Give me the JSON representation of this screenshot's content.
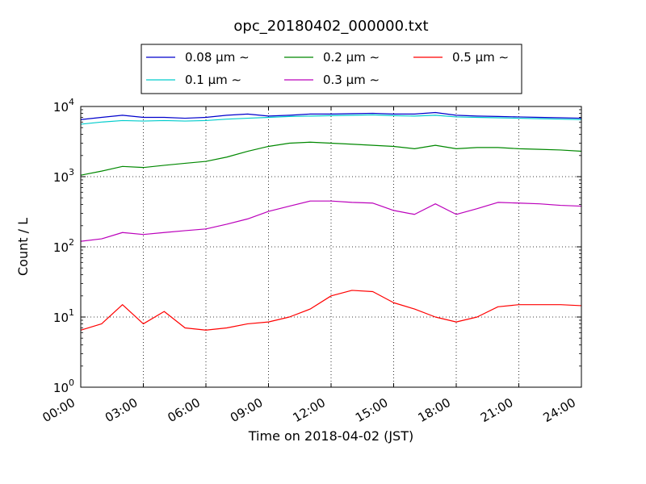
{
  "chart_data": {
    "type": "line",
    "title": "opc_20180402_000000.txt",
    "xlabel": "Time on 2018-04-02 (JST)",
    "ylabel": "Count / L",
    "x_ticks": [
      "00:00",
      "03:00",
      "06:00",
      "09:00",
      "12:00",
      "15:00",
      "18:00",
      "21:00",
      "24:00"
    ],
    "y_scale": "log",
    "ylim": [
      1,
      10000
    ],
    "y_ticks": [
      {
        "base": "10",
        "exp": "0"
      },
      {
        "base": "10",
        "exp": "1"
      },
      {
        "base": "10",
        "exp": "2"
      },
      {
        "base": "10",
        "exp": "3"
      },
      {
        "base": "10",
        "exp": "4"
      }
    ],
    "grid": true,
    "legend_position": "top-center, above plot",
    "x_hours": [
      0,
      1,
      2,
      3,
      4,
      5,
      6,
      7,
      8,
      9,
      10,
      11,
      12,
      13,
      14,
      15,
      16,
      17,
      18,
      19,
      20,
      21,
      22,
      23,
      24
    ],
    "series": [
      {
        "name": "0.08 μm ∼",
        "color": "#0000cc",
        "values": [
          6500,
          7000,
          7500,
          7000,
          7000,
          6800,
          7000,
          7500,
          7800,
          7300,
          7500,
          7800,
          7800,
          7900,
          8000,
          7800,
          7800,
          8200,
          7500,
          7300,
          7200,
          7100,
          7000,
          6900,
          6800
        ]
      },
      {
        "name": "0.1 μm ∼",
        "color": "#00cccc",
        "values": [
          5600,
          6000,
          6300,
          6200,
          6300,
          6200,
          6300,
          6600,
          6800,
          7000,
          7200,
          7300,
          7400,
          7500,
          7600,
          7400,
          7300,
          7500,
          7100,
          7000,
          6900,
          6800,
          6700,
          6600,
          6500
        ]
      },
      {
        "name": "0.2 μm ∼",
        "color": "#008800",
        "values": [
          1050,
          1200,
          1400,
          1350,
          1450,
          1550,
          1650,
          1900,
          2300,
          2700,
          3000,
          3100,
          3000,
          2900,
          2800,
          2700,
          2500,
          2800,
          2500,
          2600,
          2600,
          2500,
          2450,
          2400,
          2300
        ]
      },
      {
        "name": "0.3 μm ∼",
        "color": "#bb00bb",
        "values": [
          120,
          130,
          160,
          150,
          160,
          170,
          180,
          210,
          250,
          320,
          380,
          450,
          450,
          430,
          420,
          330,
          290,
          410,
          290,
          350,
          430,
          420,
          410,
          390,
          380
        ]
      },
      {
        "name": "0.5 μm ∼",
        "color": "#ff0000",
        "values": [
          6.5,
          8,
          15,
          8,
          12,
          7,
          6.5,
          7,
          8,
          8.5,
          10,
          13,
          20,
          24,
          23,
          16,
          13,
          10,
          8.5,
          10,
          14,
          15,
          15,
          15,
          14.5
        ]
      }
    ]
  }
}
